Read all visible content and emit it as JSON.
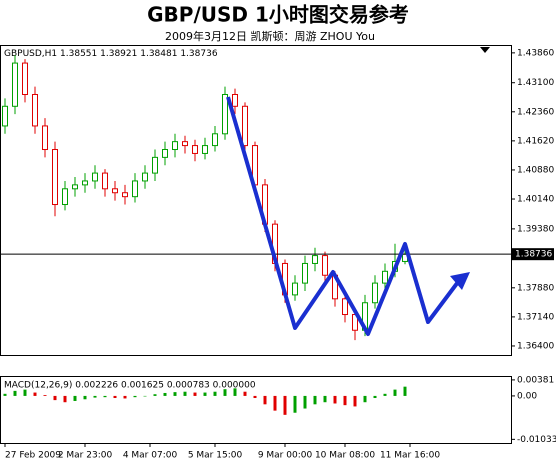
{
  "chart_data": {
    "type": "candlestick",
    "title": "GBP/USD 1小时图交易参考",
    "subtitle": "2009年3月12日 凯斯顿：周游 ZHOU You",
    "symbol": "GBPUSD,H1",
    "open": [
      1.42,
      1.425,
      1.436,
      1.428,
      1.42,
      1.414,
      1.4,
      1.404,
      1.405,
      1.406,
      1.408,
      1.404,
      1.403,
      1.402,
      1.406,
      1.408,
      1.412,
      1.414,
      1.416,
      1.415,
      1.413,
      1.415,
      1.418,
      1.428,
      1.425,
      1.415,
      1.405,
      1.395,
      1.385,
      1.377,
      1.38,
      1.385,
      1.387,
      1.382,
      1.376,
      1.372,
      1.368,
      1.375,
      1.38,
      1.383,
      1.38551
    ],
    "high": [
      1.427,
      1.438,
      1.437,
      1.43,
      1.422,
      1.416,
      1.406,
      1.407,
      1.408,
      1.41,
      1.409,
      1.406,
      1.405,
      1.408,
      1.41,
      1.414,
      1.416,
      1.418,
      1.4175,
      1.4165,
      1.417,
      1.42,
      1.43,
      1.4295,
      1.426,
      1.416,
      1.4065,
      1.396,
      1.386,
      1.382,
      1.387,
      1.389,
      1.388,
      1.383,
      1.3775,
      1.373,
      1.377,
      1.382,
      1.385,
      1.39,
      1.38921
    ],
    "low": [
      1.418,
      1.423,
      1.426,
      1.418,
      1.412,
      1.397,
      1.3985,
      1.402,
      1.403,
      1.404,
      1.402,
      1.401,
      1.4,
      1.4005,
      1.404,
      1.406,
      1.41,
      1.412,
      1.413,
      1.411,
      1.4115,
      1.4135,
      1.4165,
      1.423,
      1.413,
      1.403,
      1.393,
      1.383,
      1.375,
      1.3755,
      1.378,
      1.383,
      1.38,
      1.374,
      1.37,
      1.3655,
      1.3665,
      1.3735,
      1.378,
      1.3815,
      1.38481
    ],
    "close": [
      1.425,
      1.436,
      1.428,
      1.42,
      1.414,
      1.4,
      1.404,
      1.405,
      1.406,
      1.408,
      1.404,
      1.403,
      1.402,
      1.406,
      1.408,
      1.412,
      1.414,
      1.416,
      1.415,
      1.413,
      1.415,
      1.418,
      1.428,
      1.425,
      1.415,
      1.405,
      1.395,
      1.385,
      1.377,
      1.38,
      1.385,
      1.387,
      1.382,
      1.376,
      1.372,
      1.368,
      1.375,
      1.38,
      1.383,
      1.3855,
      1.38736
    ],
    "bull_color": "#00a000",
    "bear_color": "#e00000",
    "current_price": 1.38736,
    "xlim": [
      -0.5,
      50.7
    ],
    "xticks": [
      {
        "value": 0,
        "label": "27 Feb 2009"
      },
      {
        "value": 8,
        "label": "2 Mar 23:00"
      },
      {
        "value": 14.5,
        "label": "4 Mar 07:00"
      },
      {
        "value": 21,
        "label": "5 Mar 15:00"
      },
      {
        "value": 28,
        "label": "9 Mar 00:00"
      },
      {
        "value": 34,
        "label": "10 Mar 08:00"
      },
      {
        "value": 40.5,
        "label": "11 Mar 16:00"
      }
    ],
    "ylim": [
      1.3617,
      1.4406
    ],
    "yticks": [
      {
        "value": 1.4386,
        "label": "1.43860"
      },
      {
        "value": 1.431,
        "label": "1.43100"
      },
      {
        "value": 1.4236,
        "label": "1.42360"
      },
      {
        "value": 1.4162,
        "label": "1.41620"
      },
      {
        "value": 1.4088,
        "label": "1.40880"
      },
      {
        "value": 1.4014,
        "label": "1.40140"
      },
      {
        "value": 1.3938,
        "label": "1.39380"
      },
      {
        "value": 1.3788,
        "label": "1.37880"
      },
      {
        "value": 1.3714,
        "label": "1.37140"
      },
      {
        "value": 1.364,
        "label": "1.36400"
      }
    ],
    "macd_label": "MACD(12,26,9) 0.002226 0.001625 0.000783 0.000000",
    "macd": [
      0.0005,
      0.0012,
      0.0015,
      0.0008,
      0.0002,
      -0.001,
      -0.0015,
      -0.0012,
      -0.0008,
      -0.0004,
      -0.0003,
      -0.0005,
      -0.0006,
      -0.0003,
      0,
      0.0004,
      0.0007,
      0.0009,
      0.001,
      0.0008,
      0.0008,
      0.001,
      0.0016,
      0.0018,
      0.001,
      -0.0005,
      -0.002,
      -0.0035,
      -0.0045,
      -0.004,
      -0.003,
      -0.002,
      -0.0015,
      -0.0018,
      -0.0022,
      -0.0025,
      -0.0015,
      -0.0005,
      0.0005,
      0.0015,
      0.0022
    ],
    "macd_ylim": [
      -0.0112,
      0.0045
    ],
    "macd_yticks": [
      0.00381,
      {
        "value": 0,
        "label": "0.00"
      },
      -0.01033
    ]
  }
}
